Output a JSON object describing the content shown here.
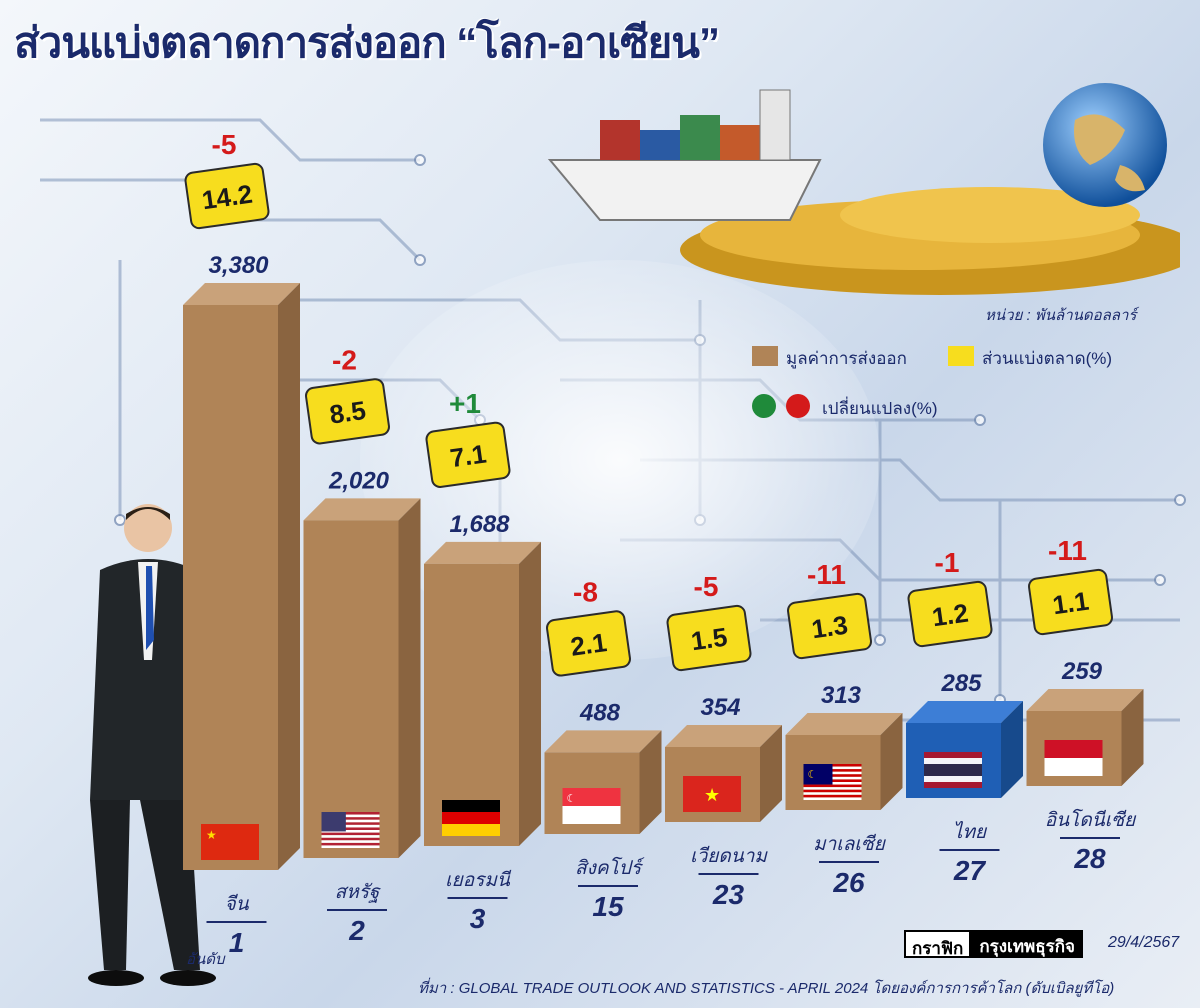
{
  "title": "ส่วนแบ่งตลาดการส่งออก “โลก-อาเซียน”",
  "unit_label": "หน่วย : พันล้านดอลลาร์",
  "legend": {
    "export_value": "มูลค่าการส่งออก",
    "market_share": "ส่วนแบ่งตลาด(%)",
    "change": "เปลี่ยนแปลง(%)"
  },
  "rank_label": "อันดับ",
  "source_brand_left": "กราฟิก",
  "source_brand_right": "กรุงเทพธุรกิจ",
  "date": "29/4/2567",
  "source": "ที่มา : GLOBAL TRADE OUTLOOK AND STATISTICS - APRIL 2024 โดยองค์การการค้าโลก (ดับเบิลยูทีโอ)",
  "colors": {
    "bar": "#b08457",
    "bar_top": "#c9a27a",
    "bar_side": "#8a6440",
    "highlight_bar": "#1f5fb5",
    "share_box": "#f7dd1e",
    "positive": "#1f8a3a",
    "negative": "#d41a1a",
    "text_dark": "#1b2a6b"
  },
  "chart_data": {
    "type": "bar",
    "categories": [
      "จีน",
      "สหรัฐ",
      "เยอรมนี",
      "สิงคโปร์",
      "เวียดนาม",
      "มาเลเซีย",
      "ไทย",
      "อินโดนีเซีย"
    ],
    "ranks": [
      "1",
      "2",
      "3",
      "15",
      "23",
      "26",
      "27",
      "28"
    ],
    "series": [
      {
        "name": "มูลค่าการส่งออก",
        "values": [
          3380,
          2020,
          1688,
          488,
          354,
          313,
          285,
          259
        ],
        "labels": [
          "3,380",
          "2,020",
          "1,688",
          "488",
          "354",
          "313",
          "285",
          "259"
        ]
      },
      {
        "name": "ส่วนแบ่งตลาด(%)",
        "values": [
          14.2,
          8.5,
          7.1,
          2.1,
          1.5,
          1.3,
          1.2,
          1.1
        ],
        "labels": [
          "14.2",
          "8.5",
          "7.1",
          "2.1",
          "1.5",
          "1.3",
          "1.2",
          "1.1"
        ]
      },
      {
        "name": "เปลี่ยนแปลง(%)",
        "values": [
          -5,
          -2,
          1,
          -8,
          -5,
          -11,
          -1,
          -11
        ],
        "labels": [
          "-5",
          "-2",
          "+1",
          "-8",
          "-5",
          "-11",
          "-1",
          "-11"
        ]
      }
    ],
    "flags": [
      "china-flag",
      "usa-flag",
      "germany-flag",
      "singapore-flag",
      "vietnam-flag",
      "malaysia-flag",
      "thailand-flag",
      "indonesia-flag"
    ],
    "highlight": "ไทย"
  }
}
